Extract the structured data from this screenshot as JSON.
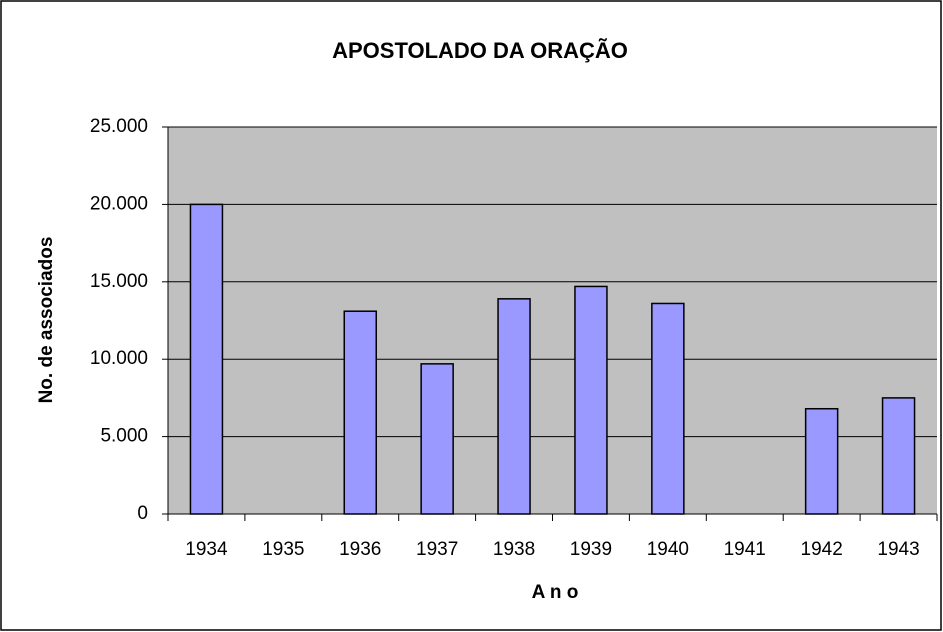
{
  "chart_data": {
    "type": "bar",
    "title": "APOSTOLADO DA ORAÇÃO",
    "x_label": "A n o",
    "y_label": "No. de associados",
    "categories": [
      "1934",
      "1935",
      "1936",
      "1937",
      "1938",
      "1939",
      "1940",
      "1941",
      "1942",
      "1943"
    ],
    "values": [
      20000,
      null,
      13100,
      9700,
      13900,
      14700,
      13600,
      null,
      6800,
      7500
    ],
    "color": "#9999ff",
    "ylim": [
      0,
      25000
    ],
    "yticks": [
      0,
      {
        "value": 5000,
        "label": "5.000"
      },
      {
        "value": 10000,
        "label": "10.000"
      },
      {
        "value": 15000,
        "label": "15.000"
      },
      {
        "value": 20000,
        "label": "20.000"
      },
      {
        "value": 25000,
        "label": "25.000"
      }
    ],
    "grid": true
  }
}
